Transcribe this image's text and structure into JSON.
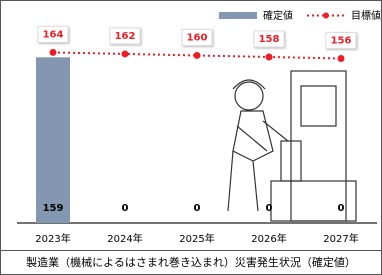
{
  "chart_data": {
    "type": "bar_line",
    "categories": [
      "2023年",
      "2024年",
      "2025年",
      "2026年",
      "2027年"
    ],
    "series": [
      {
        "name": "確定値",
        "type": "bar",
        "color": "#8497b0",
        "values": [
          159,
          0,
          0,
          0,
          0
        ]
      },
      {
        "name": "目標値",
        "type": "line",
        "axis": "y2",
        "color": "#ee1c25",
        "values": [
          164,
          162,
          160,
          158,
          156
        ]
      }
    ],
    "ylim": [
      0,
      190
    ],
    "y2lim": [
      -60,
      200
    ],
    "grid": false,
    "legend": "top-right",
    "caption": "製造業（機械によるはさまれ巻き込まれ）災害発生状況（確定値）"
  }
}
